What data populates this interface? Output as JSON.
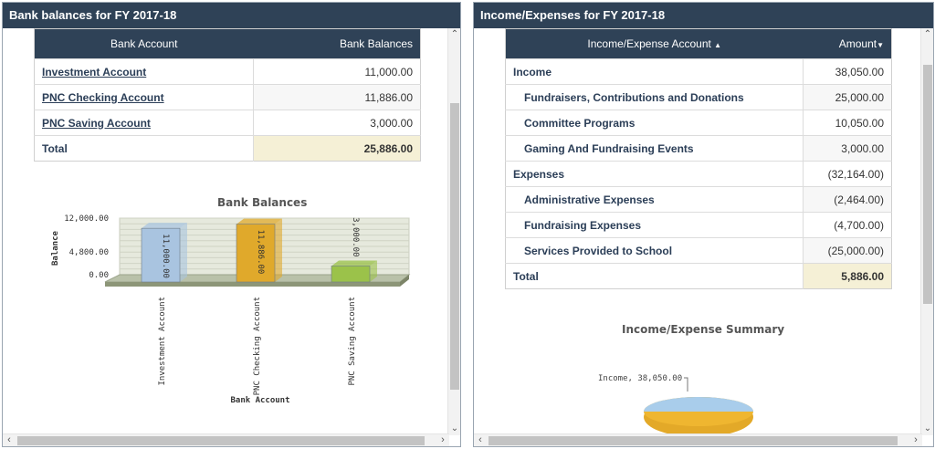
{
  "left_panel": {
    "title": "Bank balances for FY 2017-18",
    "table": {
      "headers": [
        "Bank Account",
        "Bank Balances"
      ],
      "rows": [
        {
          "account": "Investment Account",
          "balance": "11,000.00"
        },
        {
          "account": "PNC Checking Account",
          "balance": "11,886.00"
        },
        {
          "account": "PNC Saving Account",
          "balance": "3,000.00"
        }
      ],
      "total_label": "Total",
      "total_value": "25,886.00"
    }
  },
  "right_panel": {
    "title": "Income/Expenses for FY 2017-18",
    "table": {
      "headers": [
        "Income/Expense Account",
        "Amount"
      ],
      "rows": [
        {
          "label": "Income",
          "amount": "38,050.00",
          "level": 0
        },
        {
          "label": "Fundraisers, Contributions and Donations",
          "amount": "25,000.00",
          "level": 1
        },
        {
          "label": "Committee Programs",
          "amount": "10,050.00",
          "level": 1
        },
        {
          "label": "Gaming And Fundraising Events",
          "amount": "3,000.00",
          "level": 1
        },
        {
          "label": "Expenses",
          "amount": "(32,164.00)",
          "level": 0
        },
        {
          "label": "Administrative Expenses",
          "amount": "(2,464.00)",
          "level": 1
        },
        {
          "label": "Fundraising Expenses",
          "amount": "(4,700.00)",
          "level": 1
        },
        {
          "label": "Services Provided to School",
          "amount": "(25,000.00)",
          "level": 1
        }
      ],
      "total_label": "Total",
      "total_value": "5,886.00"
    }
  },
  "chart_data": [
    {
      "type": "bar",
      "title": "Bank Balances",
      "xlabel": "Bank Account",
      "ylabel": "Balance",
      "categories": [
        "Investment Account",
        "PNC Checking Account",
        "PNC Saving Account"
      ],
      "values": [
        11000,
        11886,
        3000
      ],
      "value_labels": [
        "11,000.00",
        "11,886.00",
        "3,000.00"
      ],
      "yticks": [
        "12,000.00",
        "4,800.00",
        "0.00"
      ],
      "ytick_values": [
        12000,
        4800,
        0
      ],
      "ylim": [
        0,
        12000
      ],
      "colors": [
        "#a9c4e0",
        "#e0a92b",
        "#9bc24a"
      ]
    },
    {
      "type": "pie",
      "title": "Income/Expense Summary",
      "labels": [
        "Income"
      ],
      "values": [
        38050
      ],
      "value_labels": [
        "Income, 38,050.00"
      ],
      "colors": [
        "#a9cdeb",
        "#efb630"
      ]
    }
  ]
}
